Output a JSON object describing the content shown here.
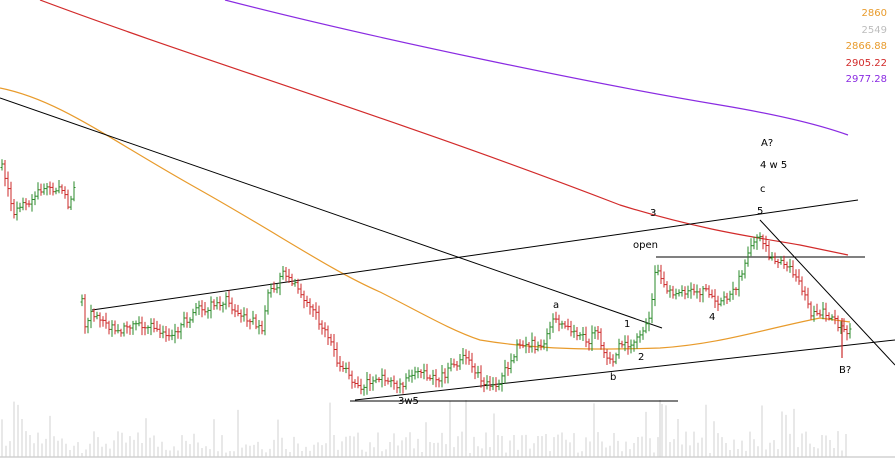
{
  "chart_data": {
    "type": "candlestick",
    "title": "",
    "xlabel": "",
    "ylabel": "",
    "grid": false,
    "legend_placement": "top-right",
    "legend": [
      {
        "text": "2860",
        "color": "#e89b2c"
      },
      {
        "text": "2549",
        "color": "#bdbdbd"
      },
      {
        "text": "2866.88",
        "color": "#e89b2c"
      },
      {
        "text": "2905.22",
        "color": "#d22b2b"
      },
      {
        "text": "2977.28",
        "color": "#8a2be2"
      }
    ],
    "annotations": [
      "A?",
      "4 w 5",
      "c",
      "5",
      "3",
      "open",
      "a",
      "1",
      "2",
      "b",
      "4",
      "3w5",
      "B?"
    ],
    "colors": {
      "up": "#2a8a2a",
      "down": "#cc2a2a",
      "ma_short": "#e89b2c",
      "ma_mid": "#d22b2b",
      "ma_long": "#8a2be2",
      "trendline": "#000000",
      "volume": "#d0d0d0"
    },
    "up_color_name": "green",
    "down_color_name": "red"
  }
}
